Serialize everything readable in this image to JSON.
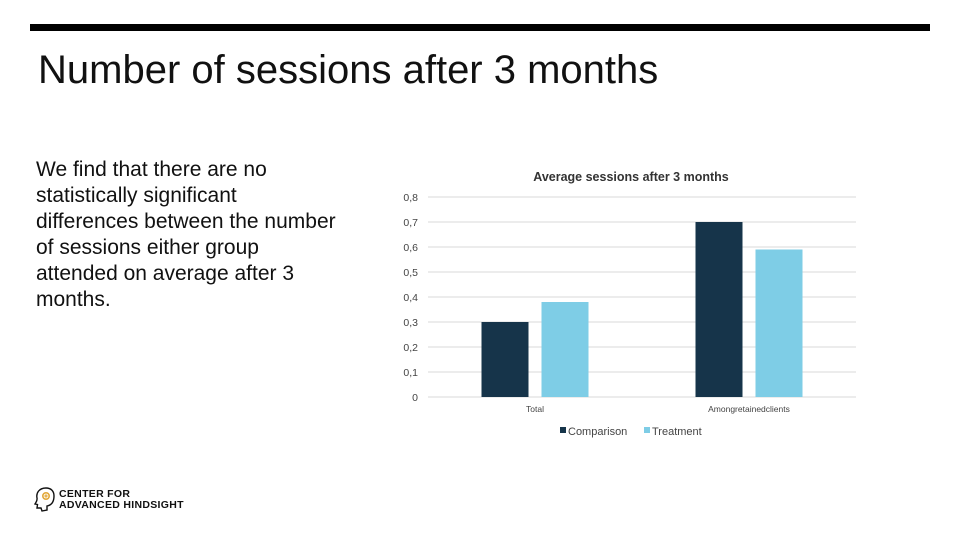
{
  "slide": {
    "title": "Number of sessions after 3 months",
    "body": "We find that there are no statistically significant differences between the number of sessions either group attended on average after 3 months."
  },
  "logo": {
    "line1": "CENTER FOR",
    "line2": "ADVANCED HINDSIGHT",
    "icon": "head-profile-icon"
  },
  "chart_data": {
    "type": "bar",
    "title": "Average sessions after 3 months",
    "categories": [
      "Total",
      "Amongretainedclients"
    ],
    "series": [
      {
        "name": "Comparison",
        "values": [
          0.3,
          0.7
        ],
        "color": "#16344a"
      },
      {
        "name": "Treatment",
        "values": [
          0.38,
          0.59
        ],
        "color": "#7ecde6"
      }
    ],
    "ylim": [
      0,
      0.8
    ],
    "yticks": [
      "0",
      "0,1",
      "0,2",
      "0,3",
      "0,4",
      "0,5",
      "0,6",
      "0,7",
      "0,8"
    ],
    "grid": true,
    "legend": "bottom",
    "xlabel": "",
    "ylabel": ""
  }
}
